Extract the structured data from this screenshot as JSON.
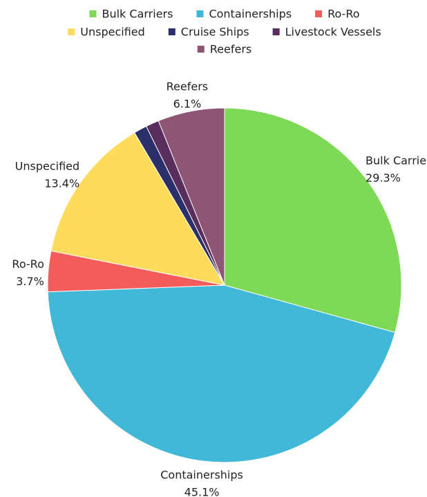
{
  "chart_data": {
    "type": "pie",
    "categories": [
      "Bulk Carriers",
      "Containerships",
      "Ro-Ro",
      "Unspecified",
      "Cruise Ships",
      "Livestock Vessels",
      "Reefers"
    ],
    "values": [
      29.3,
      45.1,
      3.7,
      13.4,
      1.2,
      1.2,
      6.1
    ],
    "slice_labels": [
      "Bulk Carriers",
      "Containerships",
      "Ro-Ro",
      "Unspecified",
      null,
      null,
      "Reefers"
    ],
    "value_labels": [
      "29.3%",
      "45.1%",
      "3.7%",
      "13.4%",
      null,
      null,
      "6.1%"
    ],
    "colors": [
      "#7ed957",
      "#41b8d8",
      "#f45b5b",
      "#ffdb5c",
      "#2b2f6a",
      "#5a2e5c",
      "#8e5574"
    ],
    "legend_position": "top"
  }
}
